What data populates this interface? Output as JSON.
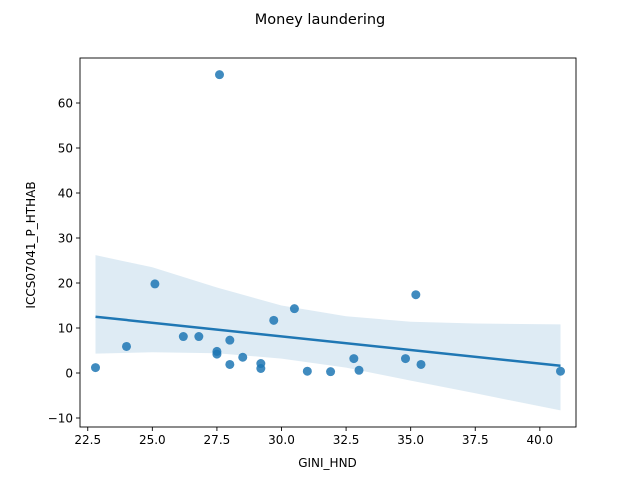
{
  "chart_data": {
    "type": "scatter",
    "title": "Money laundering",
    "xlabel": "GINI_HND",
    "ylabel": "ICCS07041_P_HTHAB",
    "xlim": [
      22.2,
      41.4
    ],
    "ylim": [
      -12,
      70
    ],
    "x_ticks": [
      22.5,
      25.0,
      27.5,
      30.0,
      32.5,
      35.0,
      37.5,
      40.0
    ],
    "x_tick_labels": [
      "22.5",
      "25.0",
      "27.5",
      "30.0",
      "32.5",
      "35.0",
      "37.5",
      "40.0"
    ],
    "y_ticks": [
      -10,
      0,
      10,
      20,
      30,
      40,
      50,
      60
    ],
    "y_tick_labels": [
      "−10",
      "0",
      "10",
      "20",
      "30",
      "40",
      "50",
      "60"
    ],
    "grid": false,
    "legend": "none",
    "colors": {
      "points": "#1f77b4",
      "line": "#1f77b4",
      "band": "#1f77b4"
    },
    "points": [
      {
        "x": 22.8,
        "y": 1.2
      },
      {
        "x": 24.0,
        "y": 5.9
      },
      {
        "x": 25.1,
        "y": 19.8
      },
      {
        "x": 26.2,
        "y": 8.1
      },
      {
        "x": 26.8,
        "y": 8.1
      },
      {
        "x": 27.5,
        "y": 4.8
      },
      {
        "x": 27.5,
        "y": 4.2
      },
      {
        "x": 27.6,
        "y": 66.3
      },
      {
        "x": 28.0,
        "y": 7.3
      },
      {
        "x": 28.0,
        "y": 1.9
      },
      {
        "x": 28.5,
        "y": 3.5
      },
      {
        "x": 29.2,
        "y": 2.1
      },
      {
        "x": 29.2,
        "y": 1.0
      },
      {
        "x": 29.7,
        "y": 11.7
      },
      {
        "x": 30.5,
        "y": 14.3
      },
      {
        "x": 31.0,
        "y": 0.4
      },
      {
        "x": 31.9,
        "y": 0.3
      },
      {
        "x": 32.8,
        "y": 3.2
      },
      {
        "x": 33.0,
        "y": 0.6
      },
      {
        "x": 34.8,
        "y": 3.2
      },
      {
        "x": 35.2,
        "y": 17.4
      },
      {
        "x": 35.4,
        "y": 1.9
      },
      {
        "x": 40.8,
        "y": 0.4
      }
    ],
    "regression": {
      "line": [
        {
          "x": 22.8,
          "y": 12.5
        },
        {
          "x": 40.8,
          "y": 1.6
        }
      ],
      "ci_upper": [
        {
          "x": 22.8,
          "y": 26.2
        },
        {
          "x": 25.0,
          "y": 23.5
        },
        {
          "x": 27.5,
          "y": 19.0
        },
        {
          "x": 30.0,
          "y": 15.0
        },
        {
          "x": 32.5,
          "y": 12.6
        },
        {
          "x": 35.0,
          "y": 11.4
        },
        {
          "x": 37.5,
          "y": 11.0
        },
        {
          "x": 40.8,
          "y": 10.8
        }
      ],
      "ci_lower": [
        {
          "x": 22.8,
          "y": 4.3
        },
        {
          "x": 25.0,
          "y": 4.6
        },
        {
          "x": 27.5,
          "y": 4.4
        },
        {
          "x": 30.0,
          "y": 3.2
        },
        {
          "x": 32.5,
          "y": 1.2
        },
        {
          "x": 35.0,
          "y": -1.7
        },
        {
          "x": 37.5,
          "y": -4.5
        },
        {
          "x": 40.8,
          "y": -8.3
        }
      ]
    }
  }
}
